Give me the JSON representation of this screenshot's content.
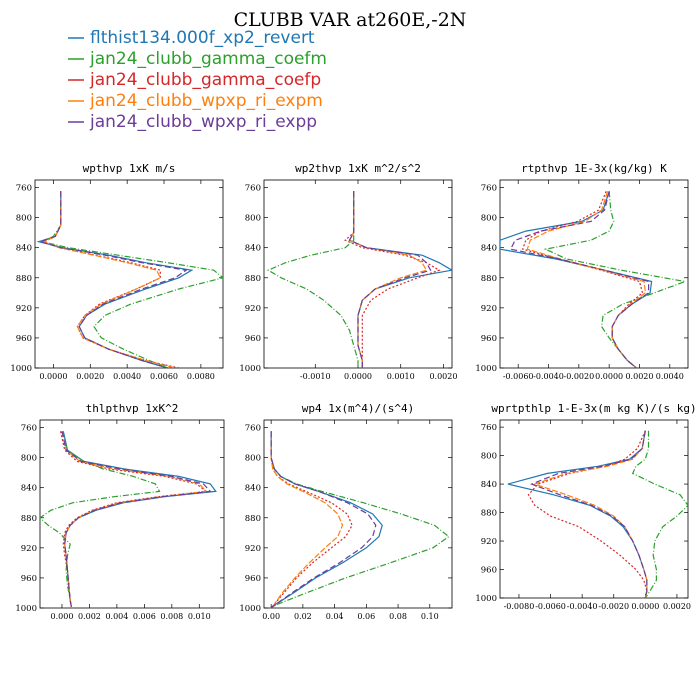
{
  "figure": {
    "title": "CLUBB VAR at260E,-2N",
    "legend": [
      {
        "label": "flthist134.000f_xp2_revert",
        "color": "#1f77b4"
      },
      {
        "label": "jan24_clubb_gamma_coefm",
        "color": "#2ca02c"
      },
      {
        "label": "jan24_clubb_gamma_coefp",
        "color": "#d62728"
      },
      {
        "label": "jan24_clubb_wpxp_ri_expm",
        "color": "#ff7f0e"
      },
      {
        "label": "jan24_clubb_wpxp_ri_expp",
        "color": "#6a3d9a"
      }
    ]
  },
  "chart_data": [
    {
      "type": "line",
      "title": "wpthvp  1xK m/s",
      "ylim": [
        1000,
        750
      ],
      "xlim": [
        -0.001,
        0.0092
      ],
      "yticks": [
        760,
        800,
        840,
        880,
        920,
        960,
        1000
      ],
      "xticks": [
        0.0,
        0.002,
        0.004,
        0.006,
        0.008
      ],
      "xtick_labels": [
        "0.0000",
        "0.0020",
        "0.0040",
        "0.0060",
        "0.0080"
      ],
      "y": [
        765,
        800,
        810,
        825,
        832,
        840,
        850,
        860,
        870,
        880,
        895,
        915,
        930,
        945,
        960,
        975,
        990,
        1000
      ],
      "series": [
        {
          "values": [
            0.0004,
            0.0004,
            0.0004,
            0.0001,
            -0.0008,
            0.0005,
            0.003,
            0.005,
            0.0075,
            0.0068,
            0.005,
            0.0028,
            0.0018,
            0.0014,
            0.0017,
            0.003,
            0.0048,
            0.0062
          ]
        },
        {
          "values": [
            0.0004,
            0.0004,
            0.0004,
            0.0,
            -0.0006,
            0.0008,
            0.0035,
            0.0062,
            0.0087,
            0.0092,
            0.0068,
            0.0042,
            0.0028,
            0.0022,
            0.0026,
            0.0038,
            0.0052,
            0.0062
          ]
        },
        {
          "values": [
            0.0004,
            0.0004,
            0.0004,
            0.0001,
            -0.0005,
            0.0003,
            0.0023,
            0.0042,
            0.0058,
            0.0058,
            0.0045,
            0.0025,
            0.0017,
            0.0013,
            0.0016,
            0.003,
            0.005,
            0.0068
          ]
        },
        {
          "values": [
            0.0004,
            0.0004,
            0.0004,
            0.0001,
            -0.0005,
            0.0003,
            0.0022,
            0.004,
            0.0056,
            0.0058,
            0.0045,
            0.0026,
            0.0017,
            0.0013,
            0.0016,
            0.003,
            0.005,
            0.0066
          ]
        },
        {
          "values": [
            0.0004,
            0.0004,
            0.0004,
            0.0001,
            -0.0007,
            0.0004,
            0.0028,
            0.0048,
            0.0072,
            0.0066,
            0.0048,
            0.0027,
            0.0018,
            0.0014,
            0.0017,
            0.003,
            0.0048,
            0.0062
          ]
        }
      ]
    },
    {
      "type": "line",
      "title": "wp2thvp  1xK m^2/s^2",
      "ylim": [
        1000,
        750
      ],
      "xlim": [
        -0.0022,
        0.0022
      ],
      "yticks": [
        760,
        800,
        840,
        880,
        920,
        960,
        1000
      ],
      "xticks": [
        -0.001,
        0.0,
        0.001,
        0.002
      ],
      "xtick_labels": [
        "-0.0010",
        "0.0000",
        "0.0010",
        "0.0020"
      ],
      "y": [
        765,
        800,
        820,
        830,
        840,
        850,
        860,
        870,
        880,
        895,
        910,
        930,
        950,
        970,
        990,
        1000
      ],
      "series": [
        {
          "values": [
            -0.0001,
            -0.0001,
            -0.0001,
            -0.0002,
            0.0002,
            0.0015,
            0.0019,
            0.0022,
            0.0012,
            0.0004,
            0.0001,
            0.0,
            0.0,
            0.0,
            0.0001,
            0.0001
          ]
        },
        {
          "values": [
            -0.0001,
            -0.0001,
            -0.0001,
            -0.0001,
            -0.0003,
            -0.0011,
            -0.0017,
            -0.0021,
            -0.0018,
            -0.0012,
            -0.0008,
            -0.0004,
            -0.0002,
            -0.0001,
            0.0,
            0.0
          ]
        },
        {
          "values": [
            -0.0001,
            -0.0001,
            -0.0001,
            -0.0003,
            0.0001,
            0.0011,
            0.0016,
            0.0019,
            0.0014,
            0.0007,
            0.0003,
            0.0001,
            0.0001,
            0.0001,
            0.0001,
            0.0001
          ]
        },
        {
          "values": [
            -0.0001,
            -0.0001,
            -0.0001,
            -0.0002,
            0.0002,
            0.0012,
            0.0015,
            0.0016,
            0.001,
            0.0004,
            0.0001,
            0.0,
            0.0,
            0.0,
            0.0001,
            0.0001
          ]
        },
        {
          "values": [
            -0.0001,
            -0.0001,
            -0.0001,
            -0.0002,
            0.0002,
            0.0014,
            0.0016,
            0.0017,
            0.0011,
            0.0004,
            0.0001,
            0.0,
            0.0,
            0.0,
            0.0001,
            0.0001
          ]
        }
      ]
    },
    {
      "type": "line",
      "title": "rtpthvp  1E-3x(kg/kg) K",
      "ylim": [
        1000,
        750
      ],
      "xlim": [
        -0.0072,
        0.0052
      ],
      "yticks": [
        760,
        800,
        840,
        880,
        920,
        960,
        1000
      ],
      "xticks": [
        -0.006,
        -0.004,
        -0.002,
        0.0,
        0.002,
        0.004
      ],
      "xtick_labels": [
        "-0.0060",
        "-0.0040",
        "-0.0020",
        "0.0000",
        "0.0020",
        "0.0040"
      ],
      "y": [
        765,
        790,
        805,
        818,
        830,
        842,
        855,
        870,
        885,
        900,
        915,
        930,
        945,
        960,
        975,
        990,
        1000
      ],
      "series": [
        {
          "values": [
            0.0,
            -0.0004,
            -0.0018,
            -0.0055,
            -0.0072,
            -0.0072,
            -0.0035,
            -0.0003,
            0.0028,
            0.0027,
            0.0015,
            0.0006,
            0.0002,
            0.0002,
            0.0006,
            0.0012,
            0.0018
          ]
        },
        {
          "values": [
            0.0,
            0.0001,
            0.0003,
            0.0,
            -0.0012,
            -0.0042,
            -0.0028,
            0.0008,
            0.005,
            0.003,
            0.0009,
            -0.0004,
            -0.0005,
            0.0,
            0.0006,
            0.0012,
            0.0018
          ]
        },
        {
          "values": [
            -0.0002,
            -0.0007,
            -0.0021,
            -0.0045,
            -0.0055,
            -0.0057,
            -0.0033,
            -0.0005,
            0.002,
            0.0022,
            0.0013,
            0.0006,
            0.0002,
            0.0002,
            0.0006,
            0.0012,
            0.0018
          ]
        },
        {
          "values": [
            -0.0001,
            -0.0005,
            -0.0016,
            -0.004,
            -0.0052,
            -0.0054,
            -0.0032,
            -0.0004,
            0.0023,
            0.0024,
            0.0014,
            0.0006,
            0.0002,
            0.0002,
            0.0006,
            0.0012,
            0.0018
          ]
        },
        {
          "values": [
            0.0,
            -0.0003,
            -0.0012,
            -0.0045,
            -0.0062,
            -0.0065,
            -0.0033,
            -0.0003,
            0.0026,
            0.0026,
            0.0015,
            0.0006,
            0.0002,
            0.0002,
            0.0006,
            0.0012,
            0.0018
          ]
        }
      ]
    },
    {
      "type": "line",
      "title": "thlpthvp  1xK^2",
      "ylim": [
        1000,
        750
      ],
      "xlim": [
        -0.0016,
        0.0118
      ],
      "yticks": [
        760,
        800,
        840,
        880,
        920,
        960,
        1000
      ],
      "xticks": [
        0.0,
        0.002,
        0.004,
        0.006,
        0.008,
        0.01
      ],
      "xtick_labels": [
        "0.000",
        "0.002",
        "0.004",
        "0.006",
        "0.008",
        "0.010"
      ],
      "y": [
        765,
        790,
        805,
        815,
        825,
        835,
        845,
        852,
        860,
        870,
        880,
        890,
        900,
        915,
        930,
        950,
        970,
        990,
        1000
      ],
      "series": [
        {
          "values": [
            0.0001,
            0.0004,
            0.0016,
            0.0045,
            0.0085,
            0.0108,
            0.0112,
            0.0075,
            0.0045,
            0.0025,
            0.0012,
            0.0006,
            0.0003,
            0.0002,
            0.0003,
            0.0004,
            0.0005,
            0.0006,
            0.0007
          ]
        },
        {
          "values": [
            0.0,
            0.0004,
            0.0016,
            0.003,
            0.0052,
            0.0068,
            0.0071,
            0.0038,
            0.0008,
            -0.0008,
            -0.0016,
            -0.001,
            -0.0002,
            0.0006,
            0.0004,
            0.0003,
            0.0004,
            0.0006,
            0.0007
          ]
        },
        {
          "values": [
            -0.0001,
            0.0002,
            0.0011,
            0.0034,
            0.0075,
            0.0098,
            0.0105,
            0.007,
            0.004,
            0.0022,
            0.0011,
            0.0005,
            0.0002,
            0.0001,
            0.0002,
            0.0004,
            0.0005,
            0.0006,
            0.0007
          ]
        },
        {
          "values": [
            0.0,
            0.0003,
            0.0013,
            0.0038,
            0.0078,
            0.01,
            0.0105,
            0.0072,
            0.0042,
            0.0023,
            0.0012,
            0.0006,
            0.0003,
            0.0002,
            0.0003,
            0.0004,
            0.0005,
            0.0006,
            0.0007
          ]
        },
        {
          "values": [
            0.0,
            0.0003,
            0.0014,
            0.0042,
            0.008,
            0.0103,
            0.0108,
            0.0073,
            0.0043,
            0.0024,
            0.0012,
            0.0006,
            0.0003,
            0.0002,
            0.0003,
            0.0004,
            0.0005,
            0.0006,
            0.0007
          ]
        }
      ]
    },
    {
      "type": "line",
      "title": "wp4  1x(m^4)/(s^4)",
      "ylim": [
        1000,
        750
      ],
      "xlim": [
        -0.0045,
        0.114
      ],
      "yticks": [
        760,
        800,
        840,
        880,
        920,
        960,
        1000
      ],
      "xticks": [
        0.0,
        0.02,
        0.04,
        0.06,
        0.08,
        0.1
      ],
      "xtick_labels": [
        "0.00",
        "0.02",
        "0.04",
        "0.06",
        "0.08",
        "0.10"
      ],
      "y": [
        765,
        800,
        815,
        825,
        835,
        845,
        860,
        875,
        890,
        905,
        920,
        940,
        960,
        980,
        995,
        1000
      ],
      "series": [
        {
          "values": [
            0.0,
            0.0,
            0.002,
            0.006,
            0.015,
            0.03,
            0.05,
            0.064,
            0.07,
            0.068,
            0.06,
            0.045,
            0.028,
            0.014,
            0.003,
            0.0
          ]
        },
        {
          "values": [
            0.0,
            0.0,
            0.002,
            0.006,
            0.016,
            0.032,
            0.058,
            0.082,
            0.103,
            0.112,
            0.102,
            0.075,
            0.047,
            0.022,
            0.004,
            0.0
          ]
        },
        {
          "values": [
            0.0,
            0.0,
            0.001,
            0.004,
            0.011,
            0.022,
            0.038,
            0.048,
            0.051,
            0.047,
            0.038,
            0.026,
            0.016,
            0.008,
            0.002,
            0.0
          ]
        },
        {
          "values": [
            0.0,
            0.0,
            0.001,
            0.004,
            0.01,
            0.02,
            0.034,
            0.042,
            0.045,
            0.042,
            0.034,
            0.024,
            0.015,
            0.007,
            0.002,
            0.0
          ]
        },
        {
          "values": [
            0.0,
            0.0,
            0.002,
            0.006,
            0.015,
            0.03,
            0.048,
            0.061,
            0.066,
            0.064,
            0.057,
            0.043,
            0.027,
            0.013,
            0.003,
            0.0
          ]
        }
      ]
    },
    {
      "type": "line",
      "title": "wprtpthlp  1-E-3x(m kg K)/(s kg)",
      "ylim": [
        1000,
        750
      ],
      "xlim": [
        -0.0092,
        0.0027
      ],
      "yticks": [
        760,
        800,
        840,
        880,
        920,
        960,
        1000
      ],
      "xticks": [
        -0.008,
        -0.006,
        -0.004,
        -0.002,
        0.0,
        0.002
      ],
      "xtick_labels": [
        "-0.0080",
        "-0.0060",
        "-0.0040",
        "-0.0020",
        "0.0000",
        "0.0020"
      ],
      "y": [
        765,
        790,
        805,
        815,
        825,
        840,
        855,
        870,
        885,
        900,
        920,
        940,
        960,
        975,
        990,
        1000
      ],
      "series": [
        {
          "values": [
            0.0,
            -0.0002,
            -0.001,
            -0.003,
            -0.0062,
            -0.0087,
            -0.0058,
            -0.0035,
            -0.0022,
            -0.0014,
            -0.0008,
            -0.0004,
            -0.0001,
            0.0001,
            0.0001,
            0.0
          ]
        },
        {
          "values": [
            0.0002,
            0.0002,
            0.0,
            -0.0006,
            -0.0008,
            0.0006,
            0.0022,
            0.0027,
            0.002,
            0.0011,
            0.0006,
            0.0005,
            0.0007,
            0.0007,
            0.0003,
            0.0
          ]
        },
        {
          "values": [
            0.0,
            -0.0005,
            -0.0013,
            -0.0025,
            -0.0048,
            -0.0068,
            -0.0074,
            -0.007,
            -0.006,
            -0.0042,
            -0.0028,
            -0.0016,
            -0.0006,
            -0.0001,
            0.0001,
            0.0
          ]
        },
        {
          "values": [
            0.0,
            -0.0002,
            -0.0008,
            -0.0024,
            -0.005,
            -0.007,
            -0.005,
            -0.0032,
            -0.002,
            -0.0013,
            -0.0008,
            -0.0004,
            -0.0001,
            0.0001,
            0.0001,
            0.0
          ]
        },
        {
          "values": [
            0.0,
            -0.0002,
            -0.0009,
            -0.0027,
            -0.0055,
            -0.0072,
            -0.0054,
            -0.0034,
            -0.0021,
            -0.0013,
            -0.0008,
            -0.0004,
            -0.0001,
            0.0001,
            0.0001,
            0.0
          ]
        }
      ]
    }
  ]
}
